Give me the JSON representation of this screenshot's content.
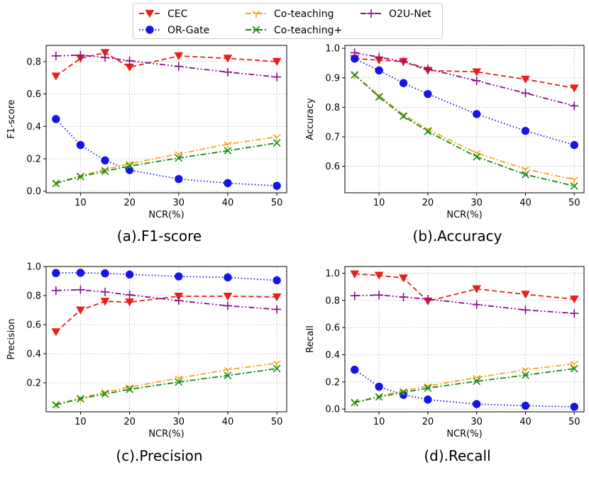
{
  "legend": {
    "entries": [
      {
        "name": "CEC",
        "color": "#e8201c",
        "marker": "triangle-down",
        "dash": "dashed"
      },
      {
        "name": "OR-Gate",
        "color": "#1515e6",
        "marker": "circle",
        "dash": "dotted"
      },
      {
        "name": "Co-teaching",
        "color": "#f5a623",
        "marker": "tri-down",
        "dash": "dashdot"
      },
      {
        "name": "Co-teaching+",
        "color": "#138a13",
        "marker": "x",
        "dash": "dashdot"
      },
      {
        "name": "O2U-Net",
        "color": "#880f88",
        "marker": "plus",
        "dash": "dashdotdot"
      }
    ]
  },
  "chart_data": [
    {
      "type": "line",
      "caption": "(a).F1-score",
      "xlabel": "NCR(%)",
      "ylabel": "F1-score",
      "x": [
        5,
        10,
        15,
        20,
        30,
        40,
        50
      ],
      "xlim": [
        3,
        52
      ],
      "xticks": [
        10,
        20,
        30,
        40,
        50
      ],
      "ylim": [
        -0.01,
        0.9
      ],
      "yticks": [
        0.0,
        0.2,
        0.4,
        0.6,
        0.8
      ],
      "yticklabels": [
        "0.0",
        "0.2",
        "0.4",
        "0.6",
        "0.8"
      ],
      "grid": true,
      "series": [
        {
          "name": "CEC",
          "values": [
            0.71,
            0.82,
            0.855,
            0.765,
            0.835,
            0.82,
            0.8
          ]
        },
        {
          "name": "OR-Gate",
          "values": [
            0.445,
            0.285,
            0.19,
            0.13,
            0.075,
            0.05,
            0.033
          ]
        },
        {
          "name": "Co-teaching",
          "values": [
            0.05,
            0.095,
            0.135,
            0.17,
            0.23,
            0.29,
            0.335
          ]
        },
        {
          "name": "Co-teaching+",
          "values": [
            0.048,
            0.09,
            0.123,
            0.155,
            0.205,
            0.25,
            0.298
          ]
        },
        {
          "name": "O2U-Net",
          "values": [
            0.835,
            0.84,
            0.825,
            0.805,
            0.77,
            0.735,
            0.705
          ]
        }
      ]
    },
    {
      "type": "line",
      "caption": "(b).Accuracy",
      "xlabel": "NCR(%)",
      "ylabel": "Accuracy",
      "x": [
        5,
        10,
        15,
        20,
        30,
        40,
        50
      ],
      "xlim": [
        3,
        52
      ],
      "xticks": [
        10,
        20,
        30,
        40,
        50
      ],
      "ylim": [
        0.51,
        1.01
      ],
      "yticks": [
        0.6,
        0.7,
        0.8,
        0.9,
        1.0
      ],
      "yticklabels": [
        "0.6",
        "0.7",
        "0.8",
        "0.9",
        "1.0"
      ],
      "grid": true,
      "series": [
        {
          "name": "CEC",
          "values": [
            0.965,
            0.96,
            0.955,
            0.925,
            0.92,
            0.895,
            0.865
          ]
        },
        {
          "name": "OR-Gate",
          "values": [
            0.965,
            0.925,
            0.882,
            0.845,
            0.777,
            0.72,
            0.672
          ]
        },
        {
          "name": "Co-teaching",
          "values": [
            0.91,
            0.84,
            0.775,
            0.725,
            0.645,
            0.59,
            0.555
          ]
        },
        {
          "name": "Co-teaching+",
          "values": [
            0.91,
            0.835,
            0.77,
            0.718,
            0.632,
            0.572,
            0.533
          ]
        },
        {
          "name": "O2U-Net",
          "values": [
            0.985,
            0.97,
            0.955,
            0.93,
            0.89,
            0.848,
            0.805
          ]
        }
      ]
    },
    {
      "type": "line",
      "caption": "(c).Precision",
      "xlabel": "NCR(%)",
      "ylabel": "Precision",
      "x": [
        5,
        10,
        15,
        20,
        30,
        40,
        50
      ],
      "xlim": [
        3,
        52
      ],
      "xticks": [
        10,
        20,
        30,
        40,
        50
      ],
      "ylim": [
        0.0,
        1.0
      ],
      "yticks": [
        0.2,
        0.4,
        0.6,
        0.8,
        1.0
      ],
      "yticklabels": [
        "0.2",
        "0.4",
        "0.6",
        "0.8",
        "1.0"
      ],
      "grid": true,
      "series": [
        {
          "name": "CEC",
          "values": [
            0.55,
            0.7,
            0.76,
            0.755,
            0.795,
            0.795,
            0.79
          ]
        },
        {
          "name": "OR-Gate",
          "values": [
            0.955,
            0.957,
            0.953,
            0.945,
            0.932,
            0.925,
            0.905
          ]
        },
        {
          "name": "Co-teaching",
          "values": [
            0.05,
            0.095,
            0.135,
            0.17,
            0.232,
            0.29,
            0.335
          ]
        },
        {
          "name": "Co-teaching+",
          "values": [
            0.048,
            0.09,
            0.123,
            0.155,
            0.205,
            0.25,
            0.298
          ]
        },
        {
          "name": "O2U-Net",
          "values": [
            0.835,
            0.84,
            0.825,
            0.805,
            0.765,
            0.73,
            0.705
          ]
        }
      ]
    },
    {
      "type": "line",
      "caption": "(d).Recall",
      "xlabel": "NCR(%)",
      "ylabel": "Recall",
      "x": [
        5,
        10,
        15,
        20,
        30,
        40,
        50
      ],
      "xlim": [
        3,
        52
      ],
      "xticks": [
        10,
        20,
        30,
        40,
        50
      ],
      "ylim": [
        -0.02,
        1.05
      ],
      "yticks": [
        0.0,
        0.2,
        0.4,
        0.6,
        0.8,
        1.0
      ],
      "yticklabels": [
        "0.0",
        "0.2",
        "0.4",
        "0.6",
        "0.8",
        "1.0"
      ],
      "grid": true,
      "series": [
        {
          "name": "CEC",
          "values": [
            0.995,
            0.985,
            0.965,
            0.795,
            0.885,
            0.845,
            0.81
          ]
        },
        {
          "name": "OR-Gate",
          "values": [
            0.29,
            0.165,
            0.105,
            0.07,
            0.037,
            0.025,
            0.017
          ]
        },
        {
          "name": "Co-teaching",
          "values": [
            0.05,
            0.095,
            0.135,
            0.17,
            0.232,
            0.29,
            0.335
          ]
        },
        {
          "name": "Co-teaching+",
          "values": [
            0.048,
            0.09,
            0.123,
            0.155,
            0.205,
            0.25,
            0.298
          ]
        },
        {
          "name": "O2U-Net",
          "values": [
            0.835,
            0.84,
            0.825,
            0.81,
            0.77,
            0.73,
            0.705
          ]
        }
      ]
    }
  ]
}
